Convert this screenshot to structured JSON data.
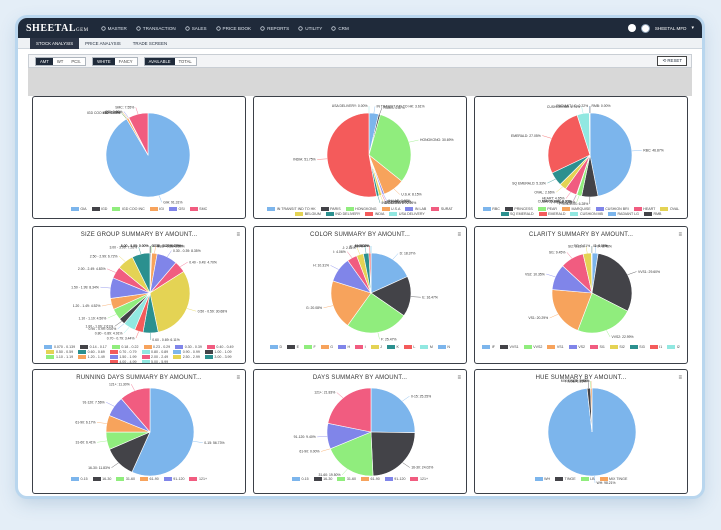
{
  "app": {
    "logo": "SHEETAL",
    "logo_suffix": "GEM",
    "user": "SHEETAL MFD"
  },
  "nav": [
    {
      "label": "MASTER",
      "icon": "gear-icon"
    },
    {
      "label": "TRANSACTION",
      "icon": "exchange-icon"
    },
    {
      "label": "SALES",
      "icon": "cart-icon"
    },
    {
      "label": "PRICE BOOK",
      "icon": "book-icon"
    },
    {
      "label": "REPORTS",
      "icon": "report-icon"
    },
    {
      "label": "UTILITY",
      "icon": "wrench-icon"
    },
    {
      "label": "CRM",
      "icon": "people-icon"
    }
  ],
  "tabs": [
    "STOCK ANALYSIS",
    "PRICE ANALYSIS",
    "TRADE SCREEN"
  ],
  "filters": {
    "group1": [
      {
        "label": "AMT",
        "on": true
      },
      {
        "label": "WT",
        "on": false
      },
      {
        "label": "PCS.",
        "on": false
      }
    ],
    "group2": [
      {
        "label": "WHITE",
        "on": true
      },
      {
        "label": "FANCY",
        "on": false
      }
    ],
    "group3": [
      {
        "label": "AVAILABLE",
        "on": true
      },
      {
        "label": "TOTAL",
        "on": false
      }
    ],
    "reset": "RESET"
  },
  "colors": [
    "#7cb5ec",
    "#434348",
    "#90ed7d",
    "#f7a35c",
    "#8085e9",
    "#f15c80",
    "#e4d354",
    "#2b908f",
    "#f45b5b",
    "#91e8e1"
  ],
  "chart_data": [
    {
      "type": "pie",
      "title": "",
      "labels": [
        "GIA",
        "IGD",
        "IGD COO INC",
        "IGI",
        "GSI",
        "SMC"
      ],
      "values": [
        91.31,
        0.0,
        0.0,
        0.75,
        0.2,
        7.55
      ],
      "slice_labels": [
        "GIA: 91.31%",
        "IGD: 0.00%",
        "IGD COO INC: 0.00%",
        "IGI: 0.75%",
        "GSI: 0.20%",
        "SMC: 7.55%"
      ]
    },
    {
      "type": "pie",
      "title": "",
      "labels": [
        "IN TRANSIT IND TO HK",
        "PARIS",
        "HONGKONG",
        "U.S.A",
        "IN LAB",
        "SURAT",
        "BELGIUM",
        "IND DELIVERY",
        "INDIA",
        "USA DELIVERY"
      ],
      "values": [
        3.61,
        0.67,
        30.69,
        8.15,
        0.67,
        0.33,
        1.0,
        0.95,
        51.75,
        0.0
      ],
      "slice_labels": [
        "IN TRANSIT IND TO HK: 3.61%",
        "PARIS: 0.67%",
        "HONGKONG: 30.69%",
        "U.S.A: 8.15%",
        "IN LAB: 0.67%",
        "SURAT: 0.33%",
        "BELGIUM: 1.00%",
        "IND DELIVERY: 0.95%",
        "INDIA: 51.75%",
        "USA DELIVERY: 0.00%"
      ]
    },
    {
      "type": "pie",
      "title": "",
      "labels": [
        "RBC",
        "PRINCESS",
        "PEAR",
        "MARQUISE",
        "CUSHION BRI",
        "HEART",
        "OVAL",
        "SQ EMERALD",
        "EMERALD",
        "CUSHION MB",
        "RADIANT LG",
        "RMB"
      ],
      "values": [
        46.87,
        6.28,
        1.86,
        0.22,
        0.0,
        4.65,
        2.66,
        5.33,
        27.05,
        4.74,
        0.22,
        0.0
      ],
      "slice_labels": [
        "RBC: 46.87%",
        "PRINCESS: 6.28%",
        "PEAR: 1.86%",
        "MARQUISE: 0.22%",
        "CUSHION BRI: 0.00%",
        "HEART: 4.65%",
        "OVAL: 2.66%",
        "SQ EMERALD: 5.33%",
        "EMERALD: 27.05%",
        "CUSHION MB: 4.74%",
        "RADIANT LG: 0.22%",
        "RMB: 0.00%"
      ]
    },
    {
      "type": "pie",
      "title": "SIZE GROUP SUMMARY BY AMOUNT...",
      "labels": [
        "0.070 - 0.139",
        "0.14 - 0.17",
        "0.18 - 0.22",
        "0.23 - 0.29",
        "0.30 - 0.39",
        "0.40 - 0.49",
        "0.50 - 0.59",
        "0.60 - 0.69",
        "0.70 - 0.79",
        "0.80 - 0.89",
        "0.90 - 0.99",
        "1.00 - 1.09",
        "1.10 - 1.19",
        "1.20 - 1.49",
        "1.50 - 1.99",
        "2.00 - 2.49",
        "2.50 - 2.99",
        "3.00 - 3.99",
        "4.00 - 4.99",
        "5.00 - 5.99"
      ],
      "values": [
        0.0,
        0.47,
        0.22,
        2.2,
        8.35,
        4.7,
        30.68,
        6.11,
        3.44,
        4.91,
        0.0,
        2.61,
        4.5,
        4.52,
        8.34,
        4.83,
        6.72,
        7.26,
        0.0,
        0.0
      ],
      "slice_labels": [
        "0.070 - 0.139: 0.00%",
        "0.14 - 0.17: 0.47%",
        "0.18 - 0.22: 0.22%",
        "0.23 - 0.29: 2.20%",
        "0.30 - 0.39: 8.35%",
        "0.40 - 0.49: 4.70%",
        "0.50 - 0.59: 30.68%",
        "0.60 - 0.69: 6.11%",
        "0.70 - 0.79: 3.44%",
        "0.80 - 0.89: 4.91%",
        "0.90 - 0.99: 0.00%",
        "1.00 - 1.09: 2.61%",
        "1.10 - 1.19: 4.50%",
        "1.20 - 1.49: 4.52%",
        "1.50 - 1.99: 8.34%",
        "2.00 - 2.49: 4.83%",
        "2.50 - 2.99: 6.72%",
        "3.00 - 3.99: 7.26%",
        "4.00 - 4.99: 0.00%",
        "5.00 - 5.99: 0.00%"
      ]
    },
    {
      "type": "pie",
      "title": "COLOR SUMMARY BY AMOUNT...",
      "labels": [
        "D",
        "E",
        "F",
        "G",
        "H",
        "I",
        "J",
        "K",
        "L",
        "M",
        "N"
      ],
      "values": [
        18.37,
        16.47,
        25.47,
        20.08,
        10.31,
        4.06,
        2.81,
        2.24,
        0.81,
        0.04,
        0.0
      ],
      "slice_labels": [
        "D: 18.37%",
        "E: 16.47%",
        "F: 25.47%",
        "G: 20.08%",
        "H: 10.31%",
        "I: 4.06%",
        "J: 2.81%",
        "K: 2.24%",
        "L: 0.81%",
        "M: 0.04%",
        "N: 0.00%"
      ]
    },
    {
      "type": "pie",
      "title": "CLARITY SUMMARY BY AMOUNT...",
      "labels": [
        "IF",
        "VVS1",
        "VVS2",
        "VS1",
        "VS2",
        "SI1",
        "SI2",
        "SI3",
        "I1",
        "I2"
      ],
      "values": [
        2.43,
        29.6,
        22.99,
        20.29,
        10.35,
        9.45,
        3.31,
        0.21,
        0.0,
        0.0
      ],
      "slice_labels": [
        "IF: 2.43%",
        "VVS1: 29.60%",
        "VVS2: 22.99%",
        "VS1: 20.29%",
        "VS2: 10.35%",
        "SI1: 9.45%",
        "SI2: 3.31%",
        "SI3: 0.21%",
        "I1: 0.00%",
        "I2: 0.00%"
      ]
    },
    {
      "type": "pie",
      "title": "RUNNING DAYS SUMMARY BY AMOUNT...",
      "labels": [
        "0-15",
        "16-30",
        "31-60",
        "61-90",
        "91-120",
        "121+"
      ],
      "values": [
        56.73,
        11.83,
        6.41,
        6.17,
        7.56,
        11.3
      ],
      "slice_labels": [
        "0-15: 56.73%",
        "16-30: 11.83%",
        "31-60: 6.41%",
        "61-90: 6.17%",
        "91-120: 7.56%",
        "121+: 11.30%"
      ]
    },
    {
      "type": "pie",
      "title": "DAYS SUMMARY BY AMOUNT...",
      "labels": [
        "0-15",
        "16-30",
        "31-60",
        "61-90",
        "91-120",
        "121+"
      ],
      "values": [
        25.25,
        24.02,
        19.5,
        0.0,
        9.4,
        21.83
      ],
      "slice_labels": [
        "0-15: 25.25%",
        "16-30: 24.02%",
        "31-60: 19.50%",
        "61-90: 0.00%",
        "91-120: 9.40%",
        "121+: 21.83%"
      ]
    },
    {
      "type": "pie",
      "title": "HUE SUMMARY BY AMOUNT...",
      "labels": [
        "WH",
        "TINGE",
        "LB",
        "MIX TINGE"
      ],
      "values": [
        98.21,
        1.25,
        0.0,
        0.54
      ],
      "slice_labels": [
        "WH: 98.21%",
        "TINGE: 1.25%",
        "LB: 0.00%",
        "MIX TINGE: 0.54%"
      ]
    }
  ]
}
